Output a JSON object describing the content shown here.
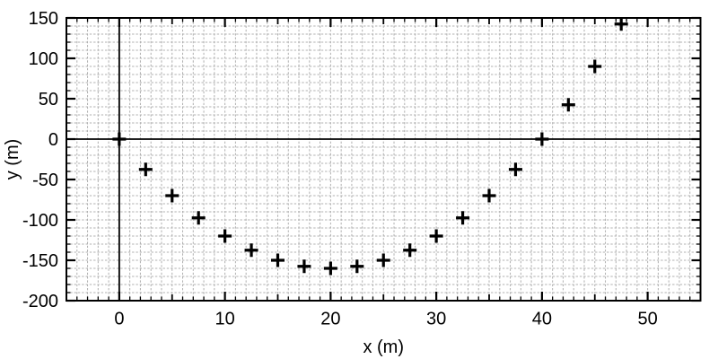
{
  "chart_data": {
    "type": "scatter",
    "title": "",
    "xlabel": "x (m)",
    "ylabel": "y (m)",
    "xlim": [
      -5,
      55
    ],
    "ylim": [
      -200,
      150
    ],
    "xticks_major": [
      0,
      10,
      20,
      30,
      40,
      50
    ],
    "yticks_major": [
      -200,
      -150,
      -100,
      -50,
      0,
      50,
      100,
      150
    ],
    "x_minor_step": 1,
    "x_medium_step": 5,
    "y_minor_step": 10,
    "grid": "minor-dashed",
    "legend": "none",
    "zero_axes": true,
    "marker": "plus",
    "x": [
      0,
      2.5,
      5,
      7.5,
      10,
      12.5,
      15,
      17.5,
      20,
      22.5,
      25,
      27.5,
      30,
      32.5,
      35,
      37.5,
      40,
      42.5,
      45,
      47.5
    ],
    "y": [
      0,
      -37.5,
      -70,
      -97.5,
      -120,
      -137.5,
      -150,
      -157.5,
      -160,
      -157.5,
      -150,
      -137.5,
      -120,
      -97.5,
      -70,
      -37.5,
      0,
      42.5,
      90,
      142.5
    ],
    "colors": {
      "marker": "#000000",
      "grid": "#b0b0b0",
      "axis": "#000000",
      "background": "#ffffff"
    }
  }
}
